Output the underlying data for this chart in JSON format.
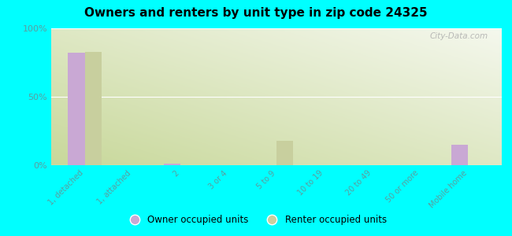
{
  "title": "Owners and renters by unit type in zip code 24325",
  "categories": [
    "1, detached",
    "1, attached",
    "2",
    "3 or 4",
    "5 to 9",
    "10 to 19",
    "20 to 49",
    "50 or more",
    "Mobile home"
  ],
  "owner_values": [
    82,
    0,
    1,
    0,
    0,
    0,
    0,
    0,
    15
  ],
  "renter_values": [
    83,
    0,
    0,
    0,
    18,
    0,
    0,
    0,
    0
  ],
  "owner_color": "#c9a8d4",
  "renter_color": "#c8cf9e",
  "background_outer": "#00ffff",
  "ylabel_ticks": [
    "0%",
    "50%",
    "100%"
  ],
  "ytick_vals": [
    0,
    50,
    100
  ],
  "ylim": [
    0,
    100
  ],
  "bar_width": 0.35,
  "watermark": "City-Data.com",
  "legend_owner": "Owner occupied units",
  "legend_renter": "Renter occupied units",
  "tick_label_color": "#5a9ea0",
  "grad_colors": [
    "#c8d89a",
    "#e8f0d0",
    "#f5f8ee"
  ],
  "grid_color": "#ffffff"
}
